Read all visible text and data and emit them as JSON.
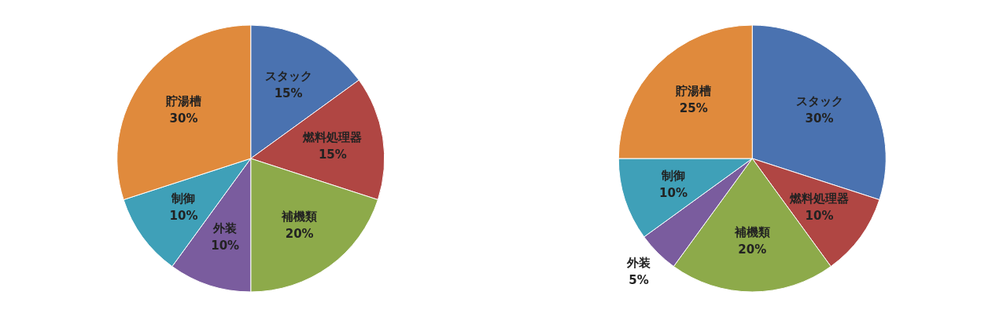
{
  "chart_data": [
    {
      "type": "pie",
      "categories": [
        "スタック",
        "燃料処理器",
        "補機類",
        "外装",
        "制御",
        "貯湯槽"
      ],
      "values": [
        15,
        15,
        20,
        10,
        10,
        30
      ],
      "value_labels": [
        "15%",
        "15%",
        "20%",
        "10%",
        "10%",
        "30%"
      ],
      "colors": [
        "#4a72b0",
        "#b04643",
        "#8daa4a",
        "#7a5c9e",
        "#3fa0b8",
        "#e08a3c"
      ]
    },
    {
      "type": "pie",
      "categories": [
        "スタック",
        "燃料処理器",
        "補機類",
        "外装",
        "制御",
        "貯湯槽"
      ],
      "values": [
        30,
        10,
        20,
        5,
        10,
        25
      ],
      "value_labels": [
        "30%",
        "10%",
        "20%",
        "5%",
        "10%",
        "25%"
      ],
      "colors": [
        "#4a72b0",
        "#b04643",
        "#8daa4a",
        "#7a5c9e",
        "#3fa0b8",
        "#e08a3c"
      ]
    }
  ]
}
